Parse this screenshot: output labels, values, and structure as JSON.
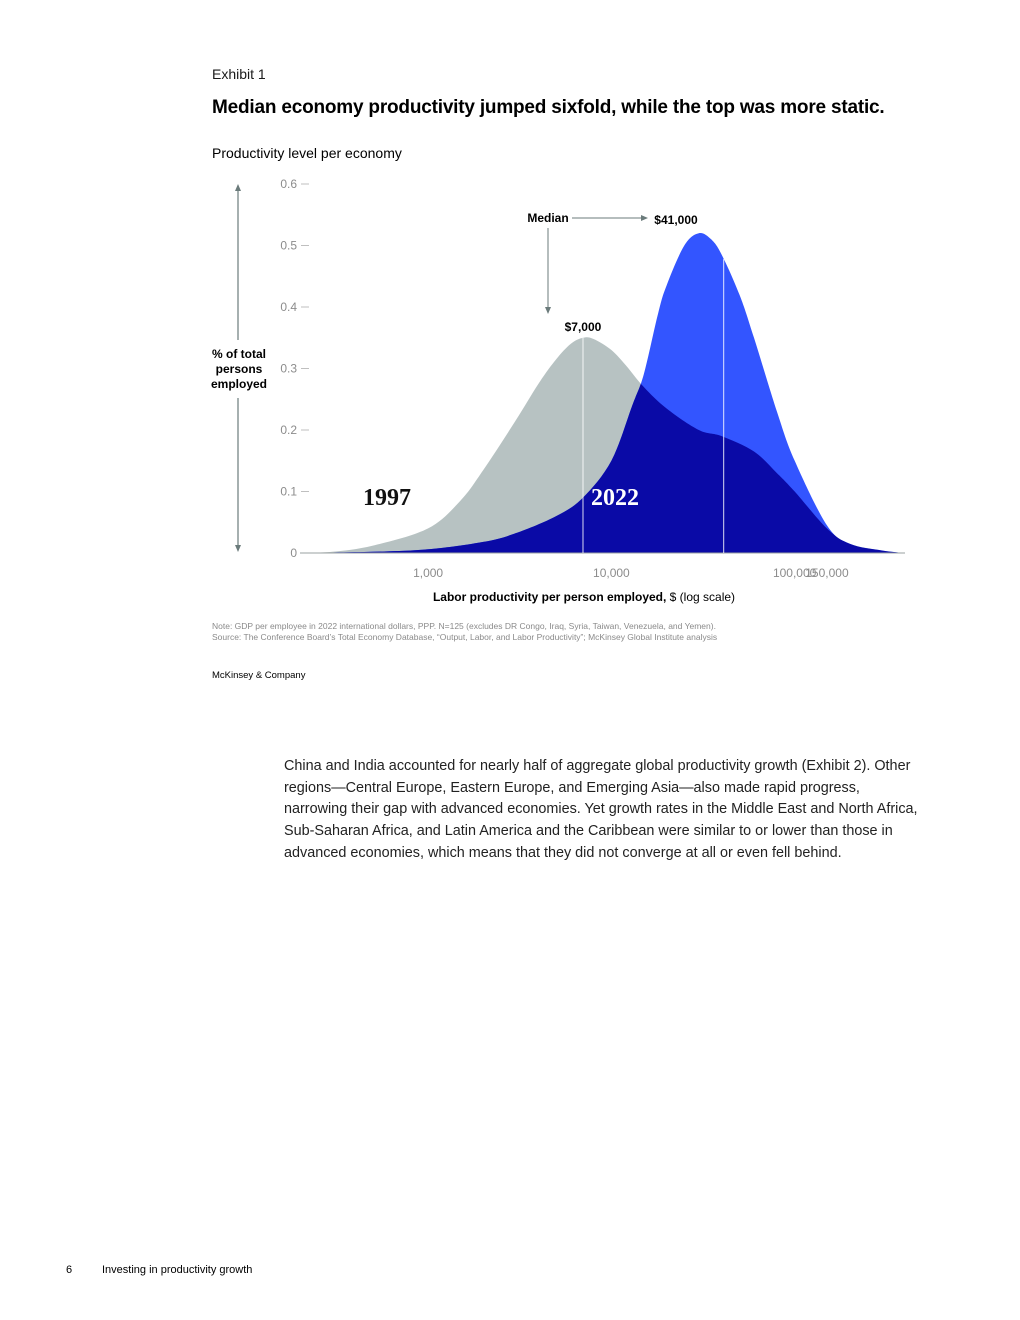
{
  "exhibit": {
    "label": "Exhibit 1",
    "title": "Median economy productivity jumped sixfold, while the top was more static."
  },
  "chart_data": {
    "type": "area",
    "title": "Productivity level per economy",
    "ylabel": "% of total persons employed",
    "xlabel_bold": "Labor productivity per person employed,",
    "xlabel_rest": " $ (log scale)",
    "x_scale": "log",
    "xlim": [
      200,
      400000
    ],
    "ylim": [
      0,
      0.6
    ],
    "y_ticks": [
      0,
      0.1,
      0.2,
      0.3,
      0.4,
      0.5,
      0.6
    ],
    "y_tick_labels": [
      "0",
      "0.1",
      "0.2",
      "0.3",
      "0.4",
      "0.5",
      "0.6"
    ],
    "x_ticks": [
      1000,
      10000,
      100000,
      150000
    ],
    "x_tick_labels": [
      "1,000",
      "10,000",
      "100,000",
      "150,000"
    ],
    "series": [
      {
        "name": "1997",
        "color": "#b7c2c2",
        "x": [
          200,
          300,
          500,
          1000,
          1500,
          2000,
          3000,
          4000,
          5000,
          6000,
          7000,
          8000,
          10000,
          12000,
          15000,
          20000,
          30000,
          40000,
          60000,
          80000,
          100000,
          150000,
          200000,
          300000,
          400000
        ],
        "y": [
          0,
          0.002,
          0.012,
          0.04,
          0.085,
          0.135,
          0.215,
          0.275,
          0.315,
          0.34,
          0.35,
          0.348,
          0.33,
          0.305,
          0.27,
          0.235,
          0.2,
          0.19,
          0.165,
          0.13,
          0.1,
          0.04,
          0.015,
          0.004,
          0
        ],
        "median": 7000,
        "median_label": "$7,000"
      },
      {
        "name": "2022",
        "color": "#3355ff",
        "x": [
          200,
          500,
          1000,
          2000,
          3000,
          5000,
          7000,
          10000,
          13000,
          15000,
          18000,
          20000,
          25000,
          30000,
          35000,
          40000,
          50000,
          60000,
          80000,
          100000,
          150000,
          200000,
          300000,
          400000
        ],
        "y": [
          0,
          0.002,
          0.006,
          0.018,
          0.032,
          0.06,
          0.09,
          0.15,
          0.24,
          0.29,
          0.39,
          0.435,
          0.5,
          0.52,
          0.51,
          0.485,
          0.42,
          0.35,
          0.23,
          0.15,
          0.045,
          0.015,
          0.004,
          0
        ],
        "median": 41000,
        "median_label": "$41,000"
      }
    ],
    "overlap_color": "#0a0aa6",
    "annotation": "Median"
  },
  "note": "Note: GDP per employee in 2022 international dollars, PPP. N=125 (excludes DR Congo, Iraq, Syria, Taiwan, Venezuela, and Yemen).",
  "source": "Source: The Conference Board’s Total Economy Database, “Output, Labor, and Labor Productivity”; McKinsey Global Institute analysis",
  "brand": "McKinsey & Company",
  "body_text": "China and India accounted for nearly half of aggregate global productivity growth (Exhibit 2). Other regions—Central Europe, Eastern Europe, and Emerging Asia—also made rapid progress, narrowing their gap with advanced economies. Yet growth rates in the Middle East and North Africa, Sub-Saharan Africa, and Latin America and the Caribbean were similar to or lower than those in advanced economies, which means that they did not converge at all or even fell behind.",
  "footer": {
    "page_number": "6",
    "doc_title": "Investing in productivity growth"
  }
}
